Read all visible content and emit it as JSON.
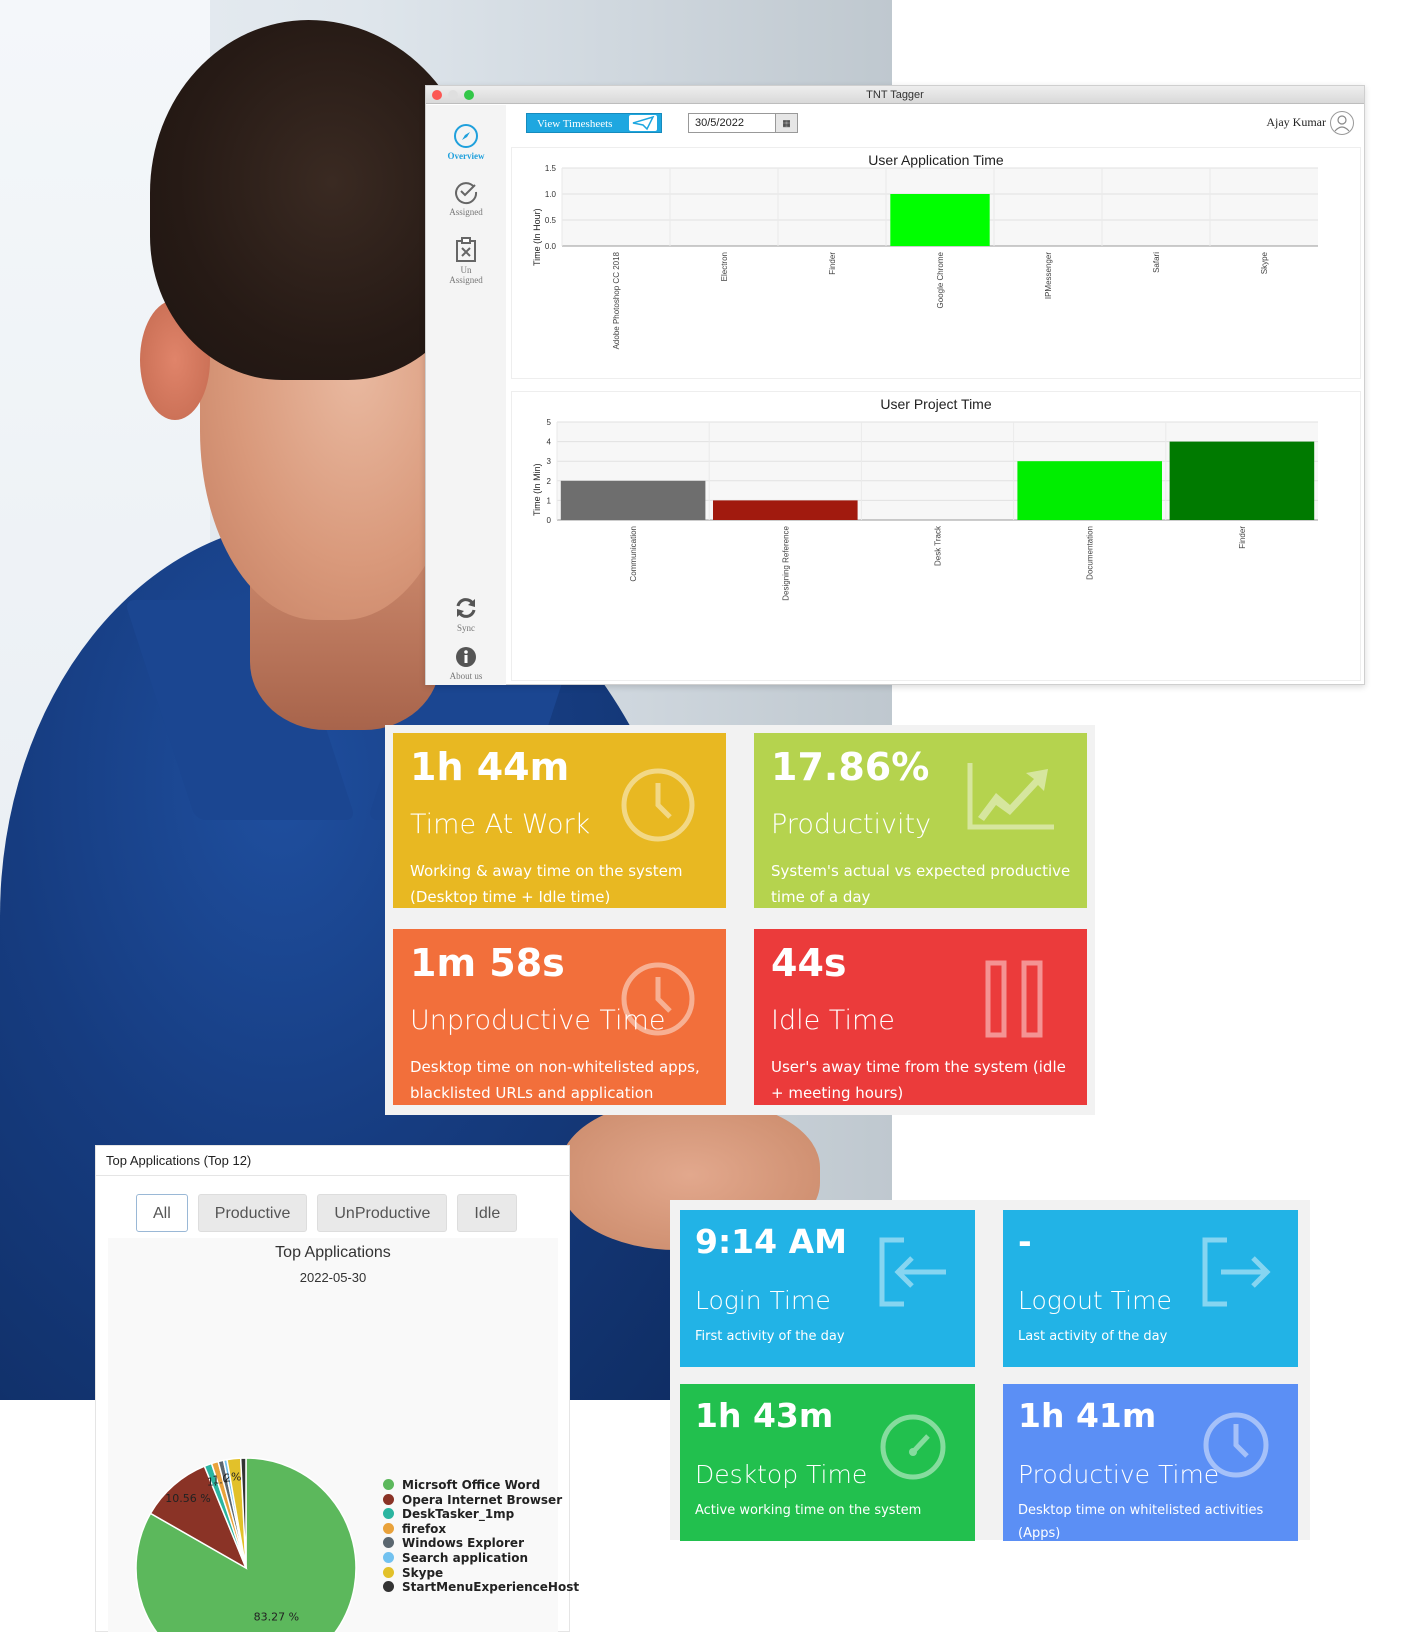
{
  "app": {
    "window_title": "TNT Tagger",
    "sidebar": [
      {
        "label": "Overview",
        "icon": "compass-icon",
        "active": true
      },
      {
        "label": "Assigned",
        "icon": "check-circle-icon"
      },
      {
        "label_line1": "Un",
        "label_line2": "Assigned",
        "icon": "clipboard-x-icon"
      },
      {
        "label": "Sync",
        "icon": "sync-icon"
      },
      {
        "label": "About us",
        "icon": "info-icon"
      }
    ],
    "toolbar": {
      "view_timesheets_label": "View Timesheets",
      "date_value": "30/5/2022",
      "user_name": "Ajay Kumar"
    }
  },
  "chart_data": [
    {
      "type": "bar",
      "title": "User Application Time",
      "ylabel": "Time (In Hour)",
      "ylim": [
        0,
        1.5
      ],
      "yticks": [
        "0.0",
        "0.5",
        "1.0",
        "1.5"
      ],
      "categories": [
        "Adobe Photoshop CC 2018",
        "Electron",
        "Finder",
        "Google Chrome",
        "IPMessenger",
        "Safari",
        "Skype"
      ],
      "values": [
        0,
        0,
        0,
        1.0,
        0,
        0,
        0
      ],
      "colors": [
        "#00ff00",
        "#00ff00",
        "#00ff00",
        "#00ff00",
        "#00ff00",
        "#00ff00",
        "#00ff00"
      ]
    },
    {
      "type": "bar",
      "title": "User Project Time",
      "ylabel": "Time (In Min)",
      "ylim": [
        0,
        5
      ],
      "yticks": [
        "0",
        "1",
        "2",
        "3",
        "4",
        "5"
      ],
      "categories": [
        "Communication",
        "Designing Reference",
        "Desk Track",
        "Documentation",
        "Finder"
      ],
      "values": [
        2,
        1,
        0,
        3,
        4
      ],
      "colors": [
        "#6e6e6e",
        "#a11a0e",
        "#ffffff",
        "#00ee00",
        "#007a00"
      ]
    },
    {
      "type": "pie",
      "title": "Top Applications",
      "subtitle": "2022-05-30",
      "slices": [
        {
          "name": "Micrsoft Office Word",
          "value": 83.27,
          "color": "#5cb85c",
          "label": "83.27 %"
        },
        {
          "name": "Opera Internet Browser",
          "value": 10.56,
          "color": "#8a3326",
          "label": "10.56 %"
        },
        {
          "name": "DeskTasker_1mp",
          "value": 1.1,
          "color": "#2bb5a0",
          "label": "1.1"
        },
        {
          "name": "firefox",
          "value": 1.0,
          "color": "#e9a23b",
          "label": "1.0"
        },
        {
          "name": "Windows Explorer",
          "value": 0.8,
          "color": "#5b6770",
          "label": "0"
        },
        {
          "name": "Search application",
          "value": 0.5,
          "color": "#72c2f0",
          "label": "2."
        },
        {
          "name": "Skype",
          "value": 2.0,
          "color": "#e2c12a",
          "label": "%"
        },
        {
          "name": "StartMenuExperienceHost",
          "value": 0.77,
          "color": "#333333",
          "label": ""
        }
      ]
    }
  ],
  "tiles_top": [
    {
      "value": "1h 44m",
      "label": "Time At Work",
      "desc": "Working & away time on the system (Desktop time + Idle time)",
      "color": "#e8b822",
      "icon": "clock-icon"
    },
    {
      "value": "17.86%",
      "label": "Productivity",
      "desc": "System's actual vs expected productive time of a day",
      "color": "#b5d34e",
      "icon": "trend-chart-icon"
    },
    {
      "value": "1m 58s",
      "label": "Unproductive Time",
      "desc": "Desktop time on non-whitelisted apps, blacklisted URLs and application exceed.",
      "color": "#f26f3b",
      "icon": "clock-icon"
    },
    {
      "value": "44s",
      "label": "Idle Time",
      "desc": "User's away time from the system (idle + meeting hours)",
      "color": "#eb3b3b",
      "icon": "pause-icon"
    }
  ],
  "tiles_bottom": [
    {
      "value": "9:14 AM",
      "label": "Login Time",
      "desc": "First activity of the day",
      "color": "#22b3e6",
      "icon": "login-icon"
    },
    {
      "value": "-",
      "label": "Logout Time",
      "desc": "Last activity of the day",
      "color": "#22b3e6",
      "icon": "logout-icon"
    },
    {
      "value": "1h 43m",
      "label": "Desktop Time",
      "desc": "Active working time on the system",
      "color": "#22c04e",
      "icon": "speedometer-icon"
    },
    {
      "value": "1h 41m",
      "label": "Productive Time",
      "desc": "Desktop time on whitelisted activities (Apps)",
      "color": "#5b8ff5",
      "icon": "clock-icon"
    }
  ],
  "top_apps": {
    "header": "Top Applications (Top 12)",
    "tabs": [
      "All",
      "Productive",
      "UnProductive",
      "Idle"
    ],
    "active_tab": "All"
  }
}
